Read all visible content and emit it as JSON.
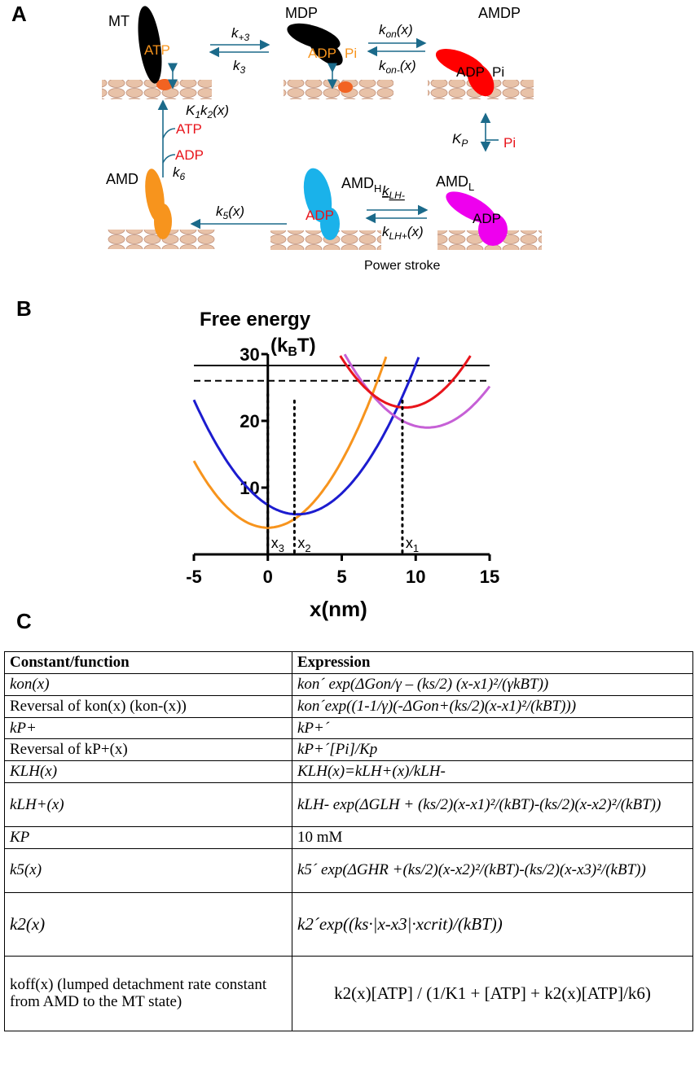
{
  "panels": {
    "a": "A",
    "b": "B",
    "c": "C"
  },
  "diagram_a": {
    "states": {
      "mt": "MT",
      "mdp": "MDP",
      "amdp": "AMDP",
      "amd": "AMD",
      "amdh": "AMD",
      "amdh_sub": "H",
      "amdl": "AMD",
      "amdl_sub": "L"
    },
    "nucleotides": {
      "mt_atp": "ATP",
      "mdp_adp": "ADP",
      "mdp_pi": "Pi",
      "amdp_adp": "ADP",
      "amdp_pi": "Pi",
      "amdh_adp": "ADP",
      "amdl_adp": "ADP",
      "atp_in": "ATP",
      "adp_out": "ADP",
      "pi_out": "Pi"
    },
    "rates": {
      "k_plus3": "k+3",
      "k3": "k3",
      "kon": "kon(x)",
      "kon_minus": "kon-(x)",
      "kp": "KP",
      "klh_minus": "kLH-",
      "klh_plus": "kLH+(x)",
      "k5": "k5(x)",
      "k1k2": "K1k2(x)",
      "k6": "k6"
    },
    "power_stroke": "Power stroke",
    "colors": {
      "motor_mt": "#000000",
      "motor_amdp": "#ff0000",
      "motor_amdh": "#1ab2ea",
      "motor_amdl": "#ee00ee",
      "motor_amd": "#f7941d",
      "arrow": "#1b6a8a",
      "text_red": "#e8141b",
      "text_orange": "#f7941d",
      "microtubule": "#e8c2a8"
    }
  },
  "chart_data": {
    "type": "line",
    "title": "Free energy",
    "ylabel": "(kBT)",
    "xlabel": "x(nm)",
    "xlim": [
      -5,
      15
    ],
    "ylim": [
      0,
      30
    ],
    "xticks": [
      "-5",
      "0",
      "5",
      "10",
      "15"
    ],
    "yticks": [
      "10",
      "20",
      "30"
    ],
    "series": [
      {
        "color": "#f7941d",
        "vertex": [
          0,
          4
        ],
        "k": 0.4
      },
      {
        "color": "#1c1ccf",
        "vertex": [
          2,
          6
        ],
        "k": 0.35
      },
      {
        "color": "#c660d6",
        "vertex": [
          10.8,
          19
        ],
        "k": 0.35
      },
      {
        "color": "#e8141b",
        "vertex": [
          9.3,
          22
        ],
        "k": 0.4
      }
    ],
    "hlines": [
      {
        "y": 28.3,
        "style": "solid"
      },
      {
        "y": 26,
        "style": "dashed"
      }
    ],
    "markers": [
      {
        "x": 0,
        "ytop": 24,
        "label": "x",
        "sub": "3"
      },
      {
        "x": 1.8,
        "ytop": 23,
        "label": "x",
        "sub": "2"
      },
      {
        "x": 9.1,
        "ytop": 23,
        "label": "x",
        "sub": "1"
      }
    ]
  },
  "table": {
    "headers": [
      "Constant/function",
      "Expression"
    ],
    "rows": [
      [
        "kon(x)",
        "kon´ exp(ΔGon/γ – (ks/2) (x-x1)²/(γkBT))"
      ],
      [
        "Reversal of kon(x)  (kon-(x))",
        "kon´exp((1-1/γ)(-ΔGon+(ks/2)(x-x1)²/(kBT)))"
      ],
      [
        "kP+",
        "kP+´"
      ],
      [
        "Reversal of kP+(x)",
        "kP+´[Pi]/Kp"
      ],
      [
        "KLH(x)",
        "KLH(x)=kLH+(x)/kLH-"
      ],
      [
        "kLH+(x)",
        "kLH- exp(ΔGLH + (ks/2)(x-x1)²/(kBT)-(ks/2)(x-x2)²/(kBT))"
      ],
      [
        "KP",
        "10 mM"
      ],
      [
        "k5(x)",
        "k5´ exp(ΔGHR +(ks/2)(x-x2)²/(kBT)-(ks/2)(x-x3)²/(kBT))"
      ],
      [
        "k2(x)",
        "k2´exp((ks·|x-x3|·xcrit)/(kBT))"
      ],
      [
        "koff(x) (lumped detachment rate constant from AMD to the MT state)",
        "k2(x)[ATP] / (1/K1 + [ATP] + k2(x)[ATP]/k6)"
      ]
    ]
  }
}
